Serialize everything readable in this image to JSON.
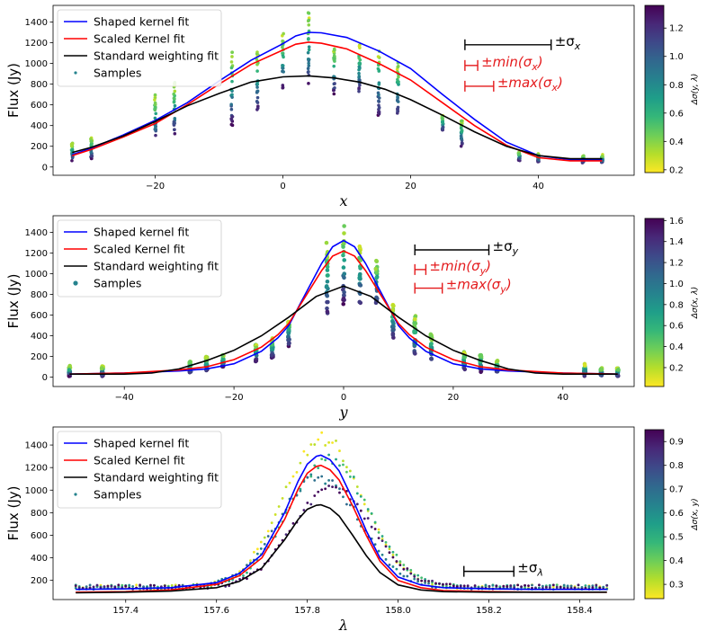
{
  "colors": {
    "shaped": "#0000ff",
    "scaled": "#ff0000",
    "standard": "#000000",
    "annotation_red": "#e41a1c",
    "colormap": [
      "#fde725",
      "#b5de2b",
      "#6ece58",
      "#35b779",
      "#1f9e89",
      "#26828e",
      "#31688e",
      "#3e4989",
      "#482878",
      "#440154"
    ]
  },
  "legend_labels": [
    "Shaped kernel fit",
    "Scaled Kernel fit",
    "Standard weighting fit",
    "Samples"
  ],
  "chart_data": [
    {
      "type": "scatter",
      "xlabel": "x",
      "ylabel": "Flux (Jy)",
      "xlim": [
        -36,
        55
      ],
      "ylim": [
        -80,
        1560
      ],
      "xticks": [
        -20,
        0,
        20,
        40
      ],
      "yticks": [
        0,
        200,
        400,
        600,
        800,
        1000,
        1200,
        1400
      ],
      "xtick_labels": [
        "−20",
        "0",
        "20",
        "40"
      ],
      "ytick_labels": [
        "0",
        "200",
        "400",
        "600",
        "800",
        "1000",
        "1200",
        "1400"
      ],
      "colorbar": {
        "label": "Δσ(y, λ)",
        "range": [
          0.18,
          1.36
        ],
        "ticks": [
          0.2,
          0.4,
          0.6,
          0.8,
          1.0,
          1.2
        ],
        "tick_labels": [
          "0.2",
          "0.4",
          "0.6",
          "0.8",
          "1.0",
          "1.2"
        ]
      },
      "sample_columns": {
        "x": [
          -33,
          -30,
          -20,
          -17,
          -8,
          -4,
          0,
          4,
          8,
          12,
          15,
          18,
          25,
          28,
          37,
          40,
          47,
          50
        ],
        "lo": [
          60,
          80,
          250,
          300,
          400,
          550,
          750,
          800,
          700,
          700,
          500,
          500,
          350,
          200,
          60,
          50,
          40,
          40
        ],
        "hi": [
          230,
          290,
          700,
          820,
          1120,
          1130,
          1300,
          1490,
          1170,
          1210,
          1160,
          1020,
          500,
          460,
          150,
          130,
          110,
          120
        ]
      },
      "series": [
        {
          "name": "Shaped kernel fit",
          "color": "#0000ff",
          "x": [
            -33,
            -30,
            -25,
            -20,
            -15,
            -10,
            -5,
            0,
            2,
            4,
            6,
            10,
            15,
            20,
            25,
            30,
            35,
            40,
            45,
            50
          ],
          "y": [
            120,
            180,
            310,
            450,
            620,
            830,
            1030,
            1190,
            1265,
            1300,
            1295,
            1250,
            1120,
            950,
            700,
            460,
            240,
            110,
            70,
            70
          ]
        },
        {
          "name": "Scaled Kernel fit",
          "color": "#ff0000",
          "x": [
            -33,
            -30,
            -25,
            -20,
            -15,
            -10,
            -5,
            0,
            2,
            4,
            6,
            10,
            15,
            20,
            25,
            30,
            35,
            40,
            45,
            50
          ],
          "y": [
            110,
            170,
            290,
            420,
            600,
            800,
            990,
            1130,
            1185,
            1205,
            1195,
            1140,
            1000,
            840,
            620,
            400,
            210,
            90,
            60,
            60
          ]
        },
        {
          "name": "Standard weighting fit",
          "color": "#000000",
          "x": [
            -33,
            -30,
            -25,
            -20,
            -15,
            -10,
            -5,
            0,
            4,
            8,
            12,
            16,
            20,
            25,
            30,
            35,
            40,
            45,
            50
          ],
          "y": [
            140,
            190,
            300,
            440,
            590,
            710,
            820,
            870,
            880,
            860,
            820,
            750,
            650,
            500,
            340,
            200,
            110,
            80,
            80
          ]
        }
      ],
      "annotations": [
        {
          "label": "±σ",
          "sub": "x",
          "color": "#000000",
          "x0": 28.5,
          "x1": 42,
          "y": 1180
        },
        {
          "label": "±min(σ",
          "sub": "x",
          "close": ")",
          "color": "#e41a1c",
          "x0": 28.5,
          "x1": 30.5,
          "y": 980
        },
        {
          "label": "±max(σ",
          "sub": "x",
          "close": ")",
          "color": "#e41a1c",
          "x0": 28.5,
          "x1": 33,
          "y": 780
        }
      ]
    },
    {
      "type": "scatter",
      "xlabel": "y",
      "ylabel": "Flux (Jy)",
      "xlim": [
        -53,
        53
      ],
      "ylim": [
        -90,
        1560
      ],
      "xticks": [
        -40,
        -20,
        0,
        20,
        40
      ],
      "yticks": [
        0,
        200,
        400,
        600,
        800,
        1000,
        1200,
        1400
      ],
      "xtick_labels": [
        "−40",
        "−20",
        "0",
        "20",
        "40"
      ],
      "ytick_labels": [
        "0",
        "200",
        "400",
        "600",
        "800",
        "1000",
        "1200",
        "1400"
      ],
      "colorbar": {
        "label": "Δσ(x, λ)",
        "range": [
          0.02,
          1.62
        ],
        "ticks": [
          0.2,
          0.4,
          0.6,
          0.8,
          1.0,
          1.2,
          1.4,
          1.6
        ],
        "tick_labels": [
          "0.2",
          "0.4",
          "0.6",
          "0.8",
          "1.0",
          "1.2",
          "1.4",
          "1.6"
        ]
      },
      "sample_columns": {
        "x": [
          -50,
          -44,
          -28,
          -25,
          -22,
          -16,
          -13,
          -10,
          -3,
          0,
          3,
          6,
          9,
          13,
          16,
          22,
          25,
          28,
          44,
          47,
          50
        ],
        "lo": [
          10,
          10,
          40,
          60,
          100,
          150,
          180,
          300,
          600,
          700,
          700,
          700,
          380,
          200,
          150,
          70,
          50,
          40,
          10,
          10,
          10
        ],
        "hi": [
          110,
          110,
          150,
          200,
          220,
          330,
          380,
          560,
          1300,
          1500,
          1270,
          1140,
          700,
          600,
          420,
          250,
          220,
          160,
          130,
          90,
          90
        ]
      },
      "series": [
        {
          "name": "Shaped kernel fit",
          "color": "#0000ff",
          "x": [
            -50,
            -40,
            -30,
            -25,
            -20,
            -15,
            -12,
            -10,
            -8,
            -6,
            -4,
            -2,
            0,
            2,
            4,
            6,
            8,
            10,
            12,
            15,
            20,
            25,
            30,
            40,
            50
          ],
          "y": [
            30,
            40,
            60,
            80,
            130,
            250,
            380,
            500,
            700,
            900,
            1100,
            1260,
            1320,
            1260,
            1100,
            900,
            700,
            500,
            380,
            250,
            130,
            80,
            60,
            40,
            30
          ]
        },
        {
          "name": "Scaled Kernel fit",
          "color": "#ff0000",
          "x": [
            -50,
            -40,
            -30,
            -25,
            -20,
            -15,
            -12,
            -10,
            -8,
            -6,
            -4,
            -2,
            0,
            2,
            4,
            6,
            8,
            10,
            12,
            15,
            20,
            25,
            30,
            40,
            50
          ],
          "y": [
            30,
            40,
            70,
            100,
            170,
            290,
            410,
            520,
            690,
            860,
            1030,
            1170,
            1220,
            1170,
            1030,
            860,
            690,
            520,
            410,
            290,
            170,
            100,
            70,
            40,
            30
          ]
        },
        {
          "name": "Standard weighting fit",
          "color": "#000000",
          "x": [
            -50,
            -40,
            -35,
            -30,
            -25,
            -20,
            -15,
            -10,
            -5,
            0,
            5,
            10,
            15,
            20,
            25,
            30,
            35,
            40,
            50
          ],
          "y": [
            30,
            30,
            40,
            80,
            160,
            260,
            400,
            580,
            780,
            880,
            780,
            580,
            400,
            260,
            160,
            80,
            40,
            30,
            30
          ]
        }
      ],
      "annotations": [
        {
          "label": "±σ",
          "sub": "y",
          "color": "#000000",
          "x0": 13,
          "x1": 26.5,
          "y": 1230
        },
        {
          "label": "±min(σ",
          "sub": "y",
          "close": ")",
          "color": "#e41a1c",
          "x0": 13,
          "x1": 15,
          "y": 1040
        },
        {
          "label": "±max(σ",
          "sub": "y",
          "close": ")",
          "color": "#e41a1c",
          "x0": 13,
          "x1": 18,
          "y": 860
        }
      ]
    },
    {
      "type": "scatter",
      "xlabel": "λ",
      "ylabel": "Flux (Jy)",
      "xlim": [
        157.24,
        158.52
      ],
      "ylim": [
        30,
        1560
      ],
      "xticks": [
        157.4,
        157.6,
        157.8,
        158.0,
        158.2,
        158.4
      ],
      "yticks": [
        200,
        400,
        600,
        800,
        1000,
        1200,
        1400
      ],
      "xtick_labels": [
        "157.4",
        "157.6",
        "157.8",
        "158.0",
        "158.2",
        "158.4"
      ],
      "ytick_labels": [
        "200",
        "400",
        "600",
        "800",
        "1000",
        "1200",
        "1400"
      ],
      "colorbar": {
        "label": "Δσ(x, y)",
        "range": [
          0.24,
          0.95
        ],
        "ticks": [
          0.3,
          0.4,
          0.5,
          0.6,
          0.7,
          0.8,
          0.9
        ],
        "tick_labels": [
          "0.3",
          "0.4",
          "0.5",
          "0.6",
          "0.7",
          "0.8",
          "0.9"
        ]
      },
      "sample_profile": {
        "x0": 157.29,
        "x1": 158.46,
        "center": 157.835,
        "width": 0.088,
        "base": 140,
        "peaks": [
          1450,
          1280,
          1120,
          1020
        ]
      },
      "series": [
        {
          "name": "Shaped kernel fit",
          "color": "#0000ff",
          "x": [
            157.29,
            157.4,
            157.5,
            157.6,
            157.65,
            157.7,
            157.75,
            157.78,
            157.8,
            157.82,
            157.83,
            157.85,
            157.87,
            157.9,
            157.93,
            157.96,
            158.0,
            158.05,
            158.1,
            158.2,
            158.3,
            158.46
          ],
          "y": [
            120,
            125,
            135,
            180,
            260,
            430,
            800,
            1080,
            1230,
            1300,
            1310,
            1270,
            1170,
            920,
            640,
            400,
            230,
            160,
            135,
            125,
            120,
            120
          ]
        },
        {
          "name": "Scaled Kernel fit",
          "color": "#ff0000",
          "x": [
            157.29,
            157.4,
            157.5,
            157.6,
            157.65,
            157.7,
            157.75,
            157.78,
            157.8,
            157.82,
            157.83,
            157.85,
            157.87,
            157.9,
            157.93,
            157.96,
            158.0,
            158.05,
            158.1,
            158.2,
            158.3,
            158.46
          ],
          "y": [
            95,
            100,
            115,
            165,
            240,
            400,
            740,
            1010,
            1150,
            1210,
            1220,
            1180,
            1090,
            860,
            600,
            370,
            200,
            135,
            110,
            100,
            95,
            95
          ]
        },
        {
          "name": "Standard weighting fit",
          "color": "#000000",
          "x": [
            157.29,
            157.4,
            157.5,
            157.6,
            157.65,
            157.7,
            157.75,
            157.78,
            157.8,
            157.82,
            157.83,
            157.85,
            157.87,
            157.9,
            157.93,
            157.96,
            158.0,
            158.05,
            158.1,
            158.2,
            158.3,
            158.46
          ],
          "y": [
            90,
            95,
            105,
            135,
            190,
            310,
            560,
            740,
            830,
            865,
            870,
            840,
            770,
            600,
            420,
            270,
            160,
            115,
            100,
            95,
            95,
            95
          ]
        }
      ],
      "annotations": [
        {
          "label": "±σ",
          "sub": "λ",
          "color": "#000000",
          "x0": 158.145,
          "x1": 158.255,
          "y": 280
        }
      ]
    }
  ]
}
